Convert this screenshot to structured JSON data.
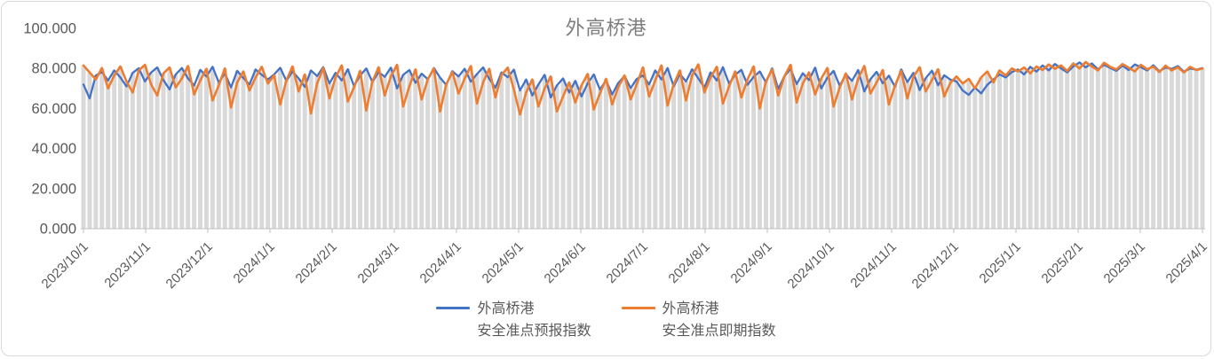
{
  "title": "外高桥港",
  "colors": {
    "forecast_line": "#4472C4",
    "spot_line": "#ED7D31",
    "background_bar": "#D9D9D9",
    "axis": "#BFBFBF",
    "axis_text": "#595959",
    "title_text": "#7F7F7F"
  },
  "legend": [
    {
      "line1": "外高桥港",
      "line2": "安全准点预报指数",
      "color": "#4472C4"
    },
    {
      "line1": "外高桥港",
      "line2": "安全准点即期指数",
      "color": "#ED7D31"
    }
  ],
  "chart_data": {
    "type": "line",
    "title": "外高桥港",
    "background_bars": true,
    "grid": false,
    "legend_position": "bottom",
    "ylim": [
      0,
      100
    ],
    "y_tick_values": [
      0,
      20,
      40,
      60,
      80,
      100
    ],
    "y_tick_labels": [
      "0.000",
      "20.000",
      "40.000",
      "60.000",
      "80.000",
      "100.000"
    ],
    "x_start_label": "2023/10/1",
    "x_end_label": "2025/4/1",
    "x_point_interval_days": 3,
    "x_tick_labels": [
      "2023/10/1",
      "2023/11/1",
      "2023/12/1",
      "2024/1/1",
      "2024/2/1",
      "2024/3/1",
      "2024/4/1",
      "2024/5/1",
      "2024/6/1",
      "2024/7/1",
      "2024/8/1",
      "2024/9/1",
      "2024/10/1",
      "2024/11/1",
      "2024/12/1",
      "2025/1/1",
      "2025/2/1",
      "2025/3/1",
      "2025/4/1"
    ],
    "series": [
      {
        "name": "外高桥港安全准点预报指数",
        "color": "#4472C4",
        "values": [
          72.0,
          65.0,
          76.5,
          78.2,
          74.0,
          79.0,
          75.5,
          71.0,
          77.8,
          80.1,
          73.5,
          78.0,
          80.5,
          74.2,
          69.5,
          77.0,
          80.2,
          75.0,
          71.5,
          79.3,
          76.0,
          80.8,
          73.0,
          77.5,
          70.5,
          78.8,
          75.2,
          72.0,
          79.5,
          76.8,
          74.5,
          77.0,
          80.3,
          73.8,
          78.5,
          75.0,
          70.8,
          79.0,
          76.2,
          80.6,
          72.5,
          77.8,
          74.0,
          79.6,
          71.2,
          76.5,
          80.0,
          73.2,
          78.2,
          75.8,
          80.4,
          70.0,
          76.8,
          79.2,
          72.8,
          77.4,
          74.6,
          80.2,
          75.4,
          71.8,
          78.6,
          76.0,
          79.8,
          73.4,
          77.2,
          80.5,
          74.8,
          70.4,
          78.0,
          75.6,
          79.4,
          69.0,
          74.5,
          66.5,
          72.0,
          76.8,
          65.5,
          71.5,
          75.0,
          68.0,
          73.8,
          66.0,
          72.5,
          77.0,
          69.5,
          74.0,
          67.0,
          72.8,
          76.2,
          70.2,
          74.8,
          76.5,
          72.0,
          79.0,
          74.5,
          80.2,
          71.0,
          77.2,
          73.5,
          79.6,
          75.0,
          70.5,
          78.0,
          74.0,
          80.6,
          72.5,
          76.8,
          79.3,
          71.8,
          75.8,
          78.5,
          73.0,
          80.0,
          69.8,
          76.0,
          79.8,
          72.2,
          77.6,
          74.2,
          80.4,
          70.0,
          75.4,
          78.8,
          71.4,
          77.0,
          73.8,
          79.2,
          68.5,
          74.6,
          78.3,
          72.6,
          76.4,
          70.8,
          79.5,
          73.2,
          77.8,
          69.2,
          75.2,
          78.9,
          71.6,
          76.6,
          74.4,
          73.5,
          69.0,
          66.8,
          70.5,
          67.5,
          71.8,
          74.5,
          77.0,
          75.5,
          78.2,
          79.5,
          77.0,
          80.8,
          78.4,
          81.5,
          79.0,
          82.2,
          80.0,
          78.0,
          81.0,
          83.0,
          80.5,
          82.5,
          79.6,
          81.8,
          80.2,
          78.8,
          81.4,
          79.2,
          82.0,
          80.6,
          79.0,
          81.6,
          78.6,
          80.4,
          79.8,
          81.2,
          78.4,
          80.0,
          79.4,
          80.2
        ]
      },
      {
        "name": "外高桥港安全准点即期指数",
        "color": "#ED7D31",
        "values": [
          81.5,
          78.0,
          74.5,
          80.2,
          70.0,
          76.5,
          81.0,
          73.5,
          68.0,
          79.0,
          81.8,
          72.0,
          66.5,
          77.5,
          80.5,
          70.5,
          75.0,
          81.2,
          67.0,
          74.0,
          79.8,
          64.0,
          71.5,
          80.0,
          60.5,
          73.0,
          78.5,
          69.0,
          75.5,
          80.8,
          72.5,
          76.5,
          62.0,
          74.0,
          81.0,
          68.5,
          77.0,
          57.5,
          72.5,
          80.2,
          65.0,
          75.5,
          81.5,
          63.5,
          70.5,
          78.8,
          59.0,
          73.5,
          80.6,
          66.5,
          76.0,
          81.8,
          61.0,
          71.0,
          79.5,
          64.5,
          74.5,
          80.0,
          58.5,
          72.0,
          78.2,
          67.5,
          75.0,
          81.2,
          62.5,
          73.0,
          79.8,
          65.5,
          76.8,
          80.4,
          69.5,
          57.0,
          68.0,
          74.5,
          61.0,
          70.0,
          76.0,
          58.5,
          66.0,
          73.0,
          63.0,
          71.5,
          77.2,
          59.5,
          67.5,
          74.8,
          62.0,
          70.8,
          76.5,
          64.5,
          72.2,
          80.5,
          66.0,
          74.0,
          81.5,
          61.5,
          72.0,
          79.0,
          64.0,
          76.5,
          82.0,
          68.0,
          75.5,
          80.8,
          62.5,
          71.0,
          78.5,
          65.5,
          74.5,
          81.0,
          60.0,
          73.5,
          79.5,
          66.5,
          76.0,
          81.8,
          63.0,
          72.5,
          78.0,
          67.0,
          75.0,
          80.2,
          61.0,
          70.5,
          77.5,
          64.5,
          74.8,
          81.2,
          67.5,
          73.0,
          79.2,
          62.0,
          71.5,
          78.8,
          65.0,
          75.8,
          80.6,
          68.5,
          74.2,
          79.6,
          66.0,
          72.8,
          76.0,
          72.5,
          74.8,
          70.0,
          75.5,
          78.5,
          73.0,
          79.0,
          76.5,
          80.0,
          78.5,
          80.5,
          77.5,
          81.0,
          79.2,
          82.0,
          79.8,
          81.5,
          78.8,
          82.5,
          80.0,
          83.2,
          81.0,
          79.0,
          82.8,
          80.8,
          79.5,
          82.2,
          80.4,
          78.5,
          81.8,
          79.6,
          80.9,
          78.2,
          81.4,
          79.0,
          80.6,
          78.0,
          80.8,
          79.2,
          80.0
        ]
      }
    ]
  }
}
